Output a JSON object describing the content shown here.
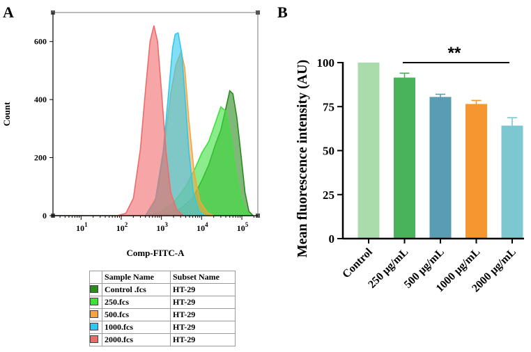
{
  "panel_a": {
    "letter": "A"
  },
  "panel_b": {
    "letter": "B"
  },
  "chart_data": [
    {
      "type": "area",
      "title": "",
      "xlabel": "Comp-FITC-A",
      "ylabel": "Count",
      "xscale": "log",
      "xlim": [
        2,
        250000
      ],
      "ylim": [
        0,
        700
      ],
      "x_tick_labels": [
        "10",
        "10",
        "10",
        "10",
        "10"
      ],
      "x_tick_exponents": [
        "1",
        "2",
        "3",
        "4",
        "5"
      ],
      "x_tick_values": [
        10,
        100,
        1000,
        10000,
        100000
      ],
      "y_ticks": [
        0,
        200,
        400,
        600
      ],
      "series": [
        {
          "name": "Control .fcs",
          "subset": "HT-29",
          "color": "#2a8a1e",
          "peak_x": 50000,
          "peak_y": 430,
          "points": [
            [
              2,
              0
            ],
            [
              800,
              0
            ],
            [
              1500,
              8
            ],
            [
              3000,
              25
            ],
            [
              6000,
              60
            ],
            [
              10000,
              120
            ],
            [
              15000,
              175
            ],
            [
              22000,
              245
            ],
            [
              30000,
              295
            ],
            [
              40000,
              370
            ],
            [
              50000,
              430
            ],
            [
              60000,
              420
            ],
            [
              75000,
              340
            ],
            [
              95000,
              210
            ],
            [
              120000,
              80
            ],
            [
              150000,
              15
            ],
            [
              190000,
              0
            ]
          ]
        },
        {
          "name": "250.fcs",
          "subset": "HT-29",
          "color": "#3ee03e",
          "peak_x": 30000,
          "peak_y": 375,
          "points": [
            [
              2,
              0
            ],
            [
              500,
              0
            ],
            [
              1000,
              15
            ],
            [
              2000,
              45
            ],
            [
              4000,
              100
            ],
            [
              7000,
              165
            ],
            [
              10000,
              215
            ],
            [
              15000,
              255
            ],
            [
              22000,
              320
            ],
            [
              30000,
              375
            ],
            [
              40000,
              360
            ],
            [
              55000,
              260
            ],
            [
              70000,
              150
            ],
            [
              90000,
              70
            ],
            [
              120000,
              20
            ],
            [
              160000,
              0
            ]
          ]
        },
        {
          "name": "500.fcs",
          "subset": "HT-29",
          "color": "#f5a540",
          "peak_x": 3100,
          "peak_y": 565,
          "points": [
            [
              2,
              0
            ],
            [
              400,
              0
            ],
            [
              800,
              70
            ],
            [
              1200,
              250
            ],
            [
              1700,
              420
            ],
            [
              2300,
              520
            ],
            [
              3100,
              565
            ],
            [
              3800,
              510
            ],
            [
              4800,
              330
            ],
            [
              6500,
              150
            ],
            [
              9000,
              50
            ],
            [
              14000,
              10
            ],
            [
              20000,
              0
            ]
          ]
        },
        {
          "name": "1000.fcs",
          "subset": "HT-29",
          "color": "#2ec8ee",
          "peak_x": 2600,
          "peak_y": 630,
          "points": [
            [
              2,
              0
            ],
            [
              400,
              0
            ],
            [
              700,
              50
            ],
            [
              1100,
              220
            ],
            [
              1500,
              420
            ],
            [
              1900,
              580
            ],
            [
              2200,
              625
            ],
            [
              2600,
              630
            ],
            [
              3200,
              560
            ],
            [
              3900,
              400
            ],
            [
              4800,
              220
            ],
            [
              6200,
              80
            ],
            [
              8500,
              15
            ],
            [
              12000,
              0
            ]
          ]
        },
        {
          "name": "2000.fcs",
          "subset": "HT-29",
          "color": "#f06a6a",
          "peak_x": 650,
          "peak_y": 655,
          "points": [
            [
              2,
              0
            ],
            [
              80,
              0
            ],
            [
              130,
              8
            ],
            [
              200,
              60
            ],
            [
              300,
              230
            ],
            [
              400,
              430
            ],
            [
              520,
              600
            ],
            [
              650,
              655
            ],
            [
              800,
              600
            ],
            [
              1000,
              430
            ],
            [
              1300,
              220
            ],
            [
              1700,
              80
            ],
            [
              2400,
              20
            ],
            [
              3500,
              0
            ]
          ]
        }
      ]
    },
    {
      "type": "bar",
      "title": "",
      "xlabel": "",
      "ylabel": "Mean fluorescence intensity (AU)",
      "ylim": [
        0,
        100
      ],
      "y_ticks": [
        0,
        25,
        50,
        75,
        100
      ],
      "categories": [
        "Control",
        "250 μg/mL",
        "500 μg/mL",
        "1000 μg/mL",
        "2000 μg/mL"
      ],
      "values": [
        100,
        91.5,
        80.5,
        76.5,
        64.2
      ],
      "errors": [
        0,
        2.5,
        1.5,
        2.0,
        4.5
      ],
      "colors": [
        "#a9dcaa",
        "#49b35c",
        "#5a9cb2",
        "#f5962e",
        "#7dc7d0"
      ],
      "annotation": {
        "text": "**",
        "from_category": "250 μg/mL",
        "to_category": "2000 μg/mL",
        "y": 100
      }
    }
  ],
  "legend_table": {
    "headers": [
      "Sample Name",
      "Subset Name"
    ],
    "rows": [
      {
        "sample": "Control .fcs",
        "subset": "HT-29",
        "color": "#2a8a1e"
      },
      {
        "sample": "250.fcs",
        "subset": "HT-29",
        "color": "#3ee03e"
      },
      {
        "sample": "500.fcs",
        "subset": "HT-29",
        "color": "#f5a540"
      },
      {
        "sample": "1000.fcs",
        "subset": "HT-29",
        "color": "#2ec8ee"
      },
      {
        "sample": "2000.fcs",
        "subset": "HT-29",
        "color": "#f06a6a"
      }
    ]
  }
}
